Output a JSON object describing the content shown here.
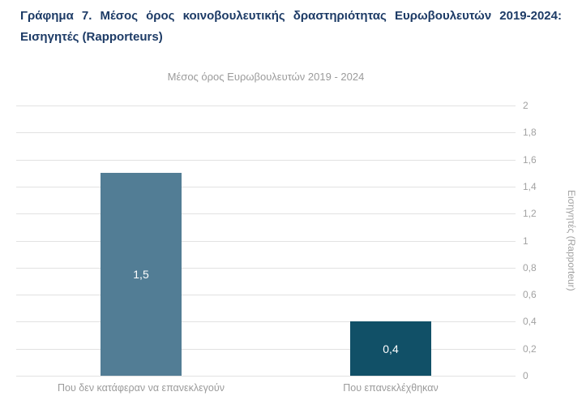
{
  "caption": {
    "line1": "Γράφημα 7. Μέσος όρος κοινοβουλευτικής δραστηριότητας Ευρωβουλευτών 2019-2024:",
    "line2": "Εισηγητές (Rapporteurs)"
  },
  "chart_data": {
    "type": "bar",
    "title": "Μέσος όρος Ευρωβουλευτών 2019 - 2024",
    "categories": [
      "Που δεν κατάφεραν να επανεκλεγούν",
      "Που επανεκλέχθηκαν"
    ],
    "values": [
      1.5,
      0.4
    ],
    "value_labels": [
      "1,5",
      "0,4"
    ],
    "series_colors": [
      "#527d95",
      "#115067"
    ],
    "value_label_color": "#ffffff",
    "xlabel": "",
    "ylabel": "Εισηγητές (Rapporteur)",
    "ylim": [
      0,
      2
    ],
    "ytick_step": 0.2,
    "ytick_labels": [
      "0",
      "0,2",
      "0,4",
      "0,6",
      "0,8",
      "1",
      "1,2",
      "1,4",
      "1,6",
      "1,8",
      "2"
    ],
    "yaxis_side": "right",
    "grid": true,
    "legend": "none"
  },
  "colors": {
    "caption_text": "#1d3b66",
    "axis_text": "#a2a2a2",
    "gridline": "#e2e2e2",
    "background": "#ffffff"
  }
}
